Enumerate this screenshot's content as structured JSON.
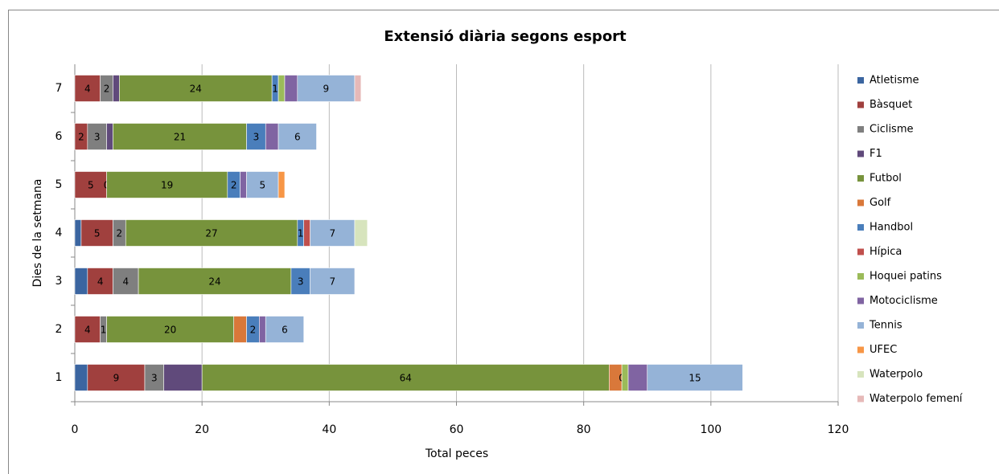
{
  "chart_data": {
    "type": "stacked_bar_horizontal",
    "title": "Extensió diària segons esport",
    "xlabel": "Total peces",
    "ylabel": "Dies de la setmana",
    "categories": [
      "1",
      "2",
      "3",
      "4",
      "5",
      "6",
      "7"
    ],
    "xlim": [
      0,
      120
    ],
    "xticks": [
      0,
      20,
      40,
      60,
      80,
      100,
      120
    ],
    "grid": true,
    "legend": "right",
    "series": [
      {
        "name": "Atletisme",
        "color": "#3B65A0",
        "values": [
          2,
          null,
          2,
          1,
          null,
          null,
          null
        ]
      },
      {
        "name": "Bàsquet",
        "color": "#A0403E",
        "data_labels": true,
        "values": [
          9,
          4,
          4,
          5,
          5,
          2,
          4
        ]
      },
      {
        "name": "Ciclisme",
        "color": "#7F7F7F",
        "data_labels": true,
        "values": [
          3,
          1,
          4,
          2,
          0,
          3,
          2
        ]
      },
      {
        "name": "F1",
        "color": "#604A7B",
        "values": [
          6,
          null,
          null,
          null,
          null,
          1,
          1
        ]
      },
      {
        "name": "Futbol",
        "color": "#77933C",
        "data_labels": true,
        "values": [
          64,
          20,
          24,
          27,
          19,
          21,
          24
        ]
      },
      {
        "name": "Golf",
        "color": "#D9783A",
        "values": [
          2,
          2,
          null,
          null,
          null,
          null,
          null
        ]
      },
      {
        "name": "Handbol",
        "color": "#4A7EBB",
        "data_labels": true,
        "values": [
          0,
          2,
          3,
          1,
          2,
          3,
          1
        ]
      },
      {
        "name": "Hípica",
        "color": "#C0504D",
        "values": [
          null,
          null,
          null,
          1,
          null,
          null,
          null
        ]
      },
      {
        "name": "Hoquei patins",
        "color": "#9BBB59",
        "values": [
          1,
          null,
          null,
          null,
          null,
          null,
          1
        ]
      },
      {
        "name": "Motociclisme",
        "color": "#8064A2",
        "values": [
          3,
          1,
          null,
          null,
          1,
          2,
          2
        ]
      },
      {
        "name": "Tennis",
        "color": "#95B3D7",
        "data_labels": true,
        "values": [
          15,
          6,
          7,
          7,
          5,
          6,
          9
        ]
      },
      {
        "name": "UFEC",
        "color": "#F79646",
        "values": [
          null,
          null,
          null,
          null,
          1,
          null,
          null
        ]
      },
      {
        "name": "Waterpolo",
        "color": "#D7E4BD",
        "values": [
          null,
          null,
          null,
          2,
          null,
          null,
          null
        ]
      },
      {
        "name": "Waterpolo femení",
        "color": "#E6B9B8",
        "values": [
          null,
          null,
          null,
          null,
          null,
          null,
          1
        ]
      }
    ]
  }
}
